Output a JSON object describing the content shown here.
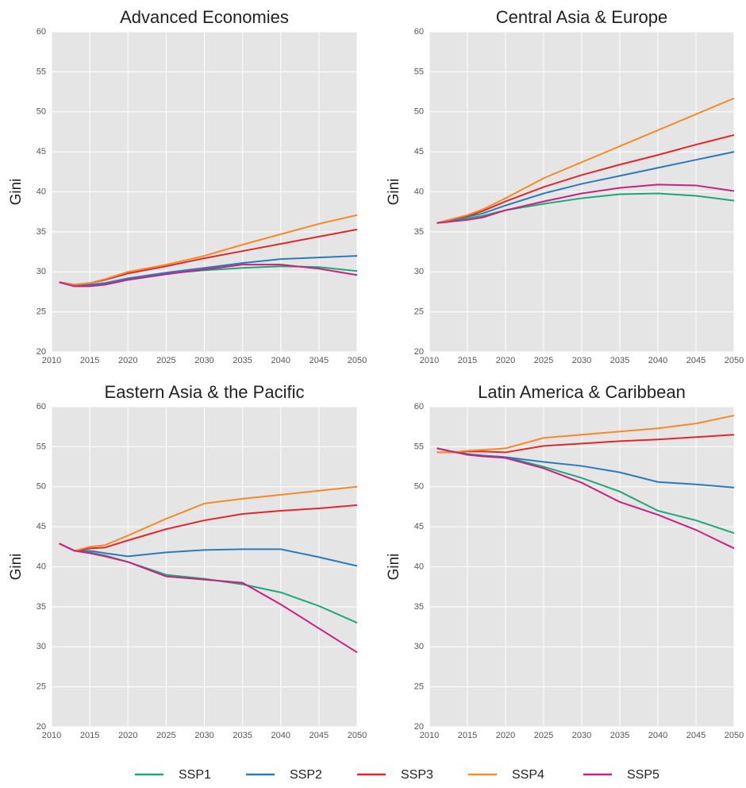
{
  "chart_data": [
    {
      "type": "line",
      "title": "Advanced Economies",
      "y_label": "Gini",
      "x": [
        2011,
        2013,
        2015,
        2017,
        2020,
        2025,
        2030,
        2035,
        2040,
        2045,
        2050
      ],
      "xlim": [
        2010,
        2050
      ],
      "xticks": [
        2010,
        2015,
        2020,
        2025,
        2030,
        2035,
        2040,
        2045,
        2050
      ],
      "ylim": [
        20,
        60
      ],
      "yticks": [
        20,
        25,
        30,
        35,
        40,
        45,
        50,
        55,
        60
      ],
      "grid": true,
      "series": [
        {
          "name": "SSP1",
          "color": "#1fa67a",
          "values": [
            28.7,
            28.3,
            28.4,
            28.6,
            29.1,
            29.8,
            30.2,
            30.5,
            30.7,
            30.6,
            30.1
          ]
        },
        {
          "name": "SSP2",
          "color": "#2b7bba",
          "values": [
            28.7,
            28.3,
            28.4,
            28.6,
            29.2,
            29.9,
            30.5,
            31.1,
            31.6,
            31.8,
            32.0
          ]
        },
        {
          "name": "SSP3",
          "color": "#e3262b",
          "values": [
            28.7,
            28.4,
            28.6,
            29.0,
            29.8,
            30.7,
            31.7,
            32.6,
            33.5,
            34.4,
            35.3
          ]
        },
        {
          "name": "SSP4",
          "color": "#f58a28",
          "values": [
            28.7,
            28.4,
            28.6,
            29.1,
            30.0,
            30.9,
            32.0,
            33.4,
            34.7,
            36.0,
            37.1
          ]
        },
        {
          "name": "SSP5",
          "color": "#c6237e",
          "values": [
            28.7,
            28.2,
            28.2,
            28.4,
            29.0,
            29.7,
            30.3,
            30.9,
            30.9,
            30.4,
            29.6
          ]
        }
      ]
    },
    {
      "type": "line",
      "title": "Central Asia & Europe",
      "y_label": "Gini",
      "x": [
        2011,
        2013,
        2015,
        2017,
        2020,
        2025,
        2030,
        2035,
        2040,
        2045,
        2050
      ],
      "xlim": [
        2010,
        2050
      ],
      "xticks": [
        2010,
        2015,
        2020,
        2025,
        2030,
        2035,
        2040,
        2045,
        2050
      ],
      "ylim": [
        20,
        60
      ],
      "yticks": [
        20,
        25,
        30,
        35,
        40,
        45,
        50,
        55,
        60
      ],
      "grid": true,
      "series": [
        {
          "name": "SSP1",
          "color": "#1fa67a",
          "values": [
            36.1,
            36.4,
            36.7,
            37.0,
            37.7,
            38.5,
            39.2,
            39.7,
            39.8,
            39.5,
            38.9
          ]
        },
        {
          "name": "SSP2",
          "color": "#2b7bba",
          "values": [
            36.1,
            36.5,
            36.9,
            37.3,
            38.3,
            39.8,
            41.0,
            42.0,
            43.0,
            44.0,
            45.0
          ]
        },
        {
          "name": "SSP3",
          "color": "#e3262b",
          "values": [
            36.1,
            36.6,
            37.0,
            37.6,
            38.8,
            40.6,
            42.1,
            43.4,
            44.6,
            45.9,
            47.1
          ]
        },
        {
          "name": "SSP4",
          "color": "#f58a28",
          "values": [
            36.1,
            36.6,
            37.1,
            37.8,
            39.2,
            41.7,
            43.7,
            45.7,
            47.7,
            49.7,
            51.7
          ]
        },
        {
          "name": "SSP5",
          "color": "#c6237e",
          "values": [
            36.1,
            36.3,
            36.5,
            36.8,
            37.7,
            38.8,
            39.8,
            40.5,
            40.9,
            40.8,
            40.1
          ]
        }
      ]
    },
    {
      "type": "line",
      "title": "Eastern Asia & the Pacific",
      "y_label": "Gini",
      "x": [
        2011,
        2013,
        2015,
        2017,
        2020,
        2025,
        2030,
        2035,
        2040,
        2045,
        2050
      ],
      "xlim": [
        2010,
        2050
      ],
      "xticks": [
        2010,
        2015,
        2020,
        2025,
        2030,
        2035,
        2040,
        2045,
        2050
      ],
      "ylim": [
        20,
        60
      ],
      "yticks": [
        20,
        25,
        30,
        35,
        40,
        45,
        50,
        55,
        60
      ],
      "grid": true,
      "series": [
        {
          "name": "SSP1",
          "color": "#1fa67a",
          "values": [
            42.9,
            42.0,
            41.8,
            41.4,
            40.6,
            39.0,
            38.5,
            37.8,
            36.8,
            35.1,
            33.0
          ]
        },
        {
          "name": "SSP2",
          "color": "#2b7bba",
          "values": [
            42.9,
            42.0,
            42.0,
            41.7,
            41.3,
            41.8,
            42.1,
            42.2,
            42.2,
            41.2,
            40.1
          ]
        },
        {
          "name": "SSP3",
          "color": "#e3262b",
          "values": [
            42.9,
            42.0,
            42.3,
            42.4,
            43.3,
            44.7,
            45.8,
            46.6,
            47.0,
            47.3,
            47.7
          ]
        },
        {
          "name": "SSP4",
          "color": "#f58a28",
          "values": [
            42.9,
            42.0,
            42.5,
            42.7,
            43.9,
            46.0,
            47.9,
            48.5,
            49.0,
            49.5,
            50.0
          ]
        },
        {
          "name": "SSP5",
          "color": "#c6237e",
          "values": [
            42.9,
            42.0,
            41.7,
            41.3,
            40.6,
            38.8,
            38.4,
            38.0,
            35.3,
            32.3,
            29.3
          ]
        }
      ]
    },
    {
      "type": "line",
      "title": "Latin America & Caribbean",
      "y_label": "Gini",
      "x": [
        2011,
        2013,
        2015,
        2017,
        2020,
        2025,
        2030,
        2035,
        2040,
        2045,
        2050
      ],
      "xlim": [
        2010,
        2050
      ],
      "xticks": [
        2010,
        2015,
        2020,
        2025,
        2030,
        2035,
        2040,
        2045,
        2050
      ],
      "ylim": [
        20,
        60
      ],
      "yticks": [
        20,
        25,
        30,
        35,
        40,
        45,
        50,
        55,
        60
      ],
      "grid": true,
      "series": [
        {
          "name": "SSP1",
          "color": "#1fa67a",
          "values": [
            54.8,
            54.4,
            54.0,
            53.9,
            53.7,
            52.5,
            51.1,
            49.4,
            47.0,
            45.8,
            44.2
          ]
        },
        {
          "name": "SSP2",
          "color": "#2b7bba",
          "values": [
            54.8,
            54.4,
            54.1,
            53.9,
            53.7,
            53.1,
            52.6,
            51.8,
            50.6,
            50.3,
            49.9
          ]
        },
        {
          "name": "SSP3",
          "color": "#e3262b",
          "values": [
            54.3,
            54.3,
            54.4,
            54.4,
            54.3,
            55.1,
            55.4,
            55.7,
            55.9,
            56.2,
            56.5
          ]
        },
        {
          "name": "SSP4",
          "color": "#f58a28",
          "values": [
            54.3,
            54.3,
            54.5,
            54.6,
            54.8,
            56.1,
            56.5,
            56.9,
            57.3,
            57.9,
            58.9
          ]
        },
        {
          "name": "SSP5",
          "color": "#c6237e",
          "values": [
            54.8,
            54.4,
            54.0,
            53.8,
            53.6,
            52.3,
            50.5,
            48.1,
            46.5,
            44.6,
            42.3
          ]
        }
      ]
    }
  ]
}
